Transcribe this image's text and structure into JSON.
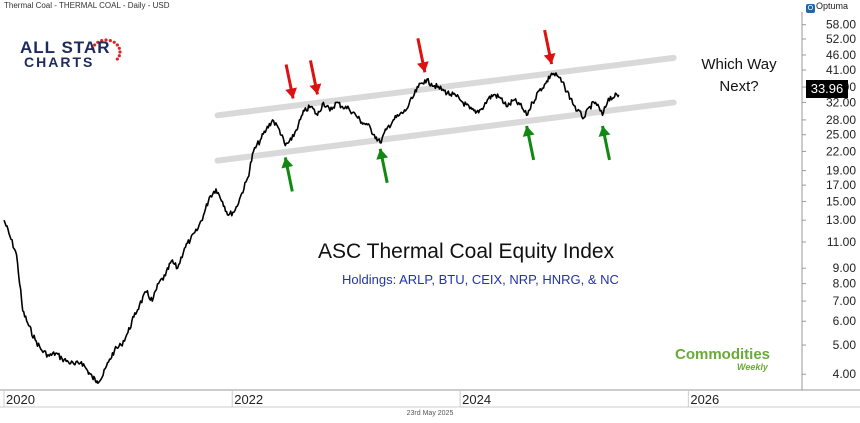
{
  "header": "Thermal Coal - THERMAL COAL - Daily - USD",
  "brand": "Optuma",
  "footer_date": "23rd May 2025",
  "logo": {
    "line1": "ALL STAR",
    "line2": "CHARTS"
  },
  "commodities_logo": {
    "word": "Commodities",
    "sub": "Weekly"
  },
  "colors": {
    "price": "#000000",
    "channel": "#d9d9d9",
    "top_arrow": "#dd1111",
    "bottom_arrow": "#118811",
    "subtitle": "#2233aa",
    "logo": "#1d2b5c"
  },
  "chart_data": {
    "type": "line",
    "title": "ASC Thermal Coal Equity Index",
    "subtitle": "Holdings: ARLP, BTU, CEIX, NRP, HNRG, & NC",
    "annotation": "Which Way\nNext?",
    "last_value": "33.96",
    "y_scale": "log",
    "ylim": [
      3.6,
      62
    ],
    "xlim": [
      "2020-01-01",
      "2026-12-31"
    ],
    "x_ticks": [
      "2020",
      "2022",
      "2024",
      "2026"
    ],
    "y_ticks": [
      "4.00",
      "5.00",
      "6.00",
      "7.00",
      "8.00",
      "9.00",
      "11.00",
      "13.00",
      "15.00",
      "17.00",
      "19.00",
      "22.00",
      "25.00",
      "28.00",
      "32.00",
      "36.00",
      "41.00",
      "46.00",
      "52.00",
      "58.00"
    ],
    "series": [
      {
        "x": [
          "2020-01-01",
          "2020-01-20",
          "2020-02-10",
          "2020-03-01",
          "2020-03-20",
          "2020-04-10",
          "2020-05-01",
          "2020-05-25",
          "2020-06-15",
          "2020-07-05",
          "2020-07-25",
          "2020-08-15",
          "2020-09-05",
          "2020-09-25",
          "2020-10-10",
          "2020-10-25",
          "2020-11-10",
          "2020-12-01",
          "2020-12-20",
          "2021-01-10",
          "2021-02-01",
          "2021-02-20",
          "2021-03-10",
          "2021-04-01",
          "2021-04-20",
          "2021-05-10",
          "2021-06-01",
          "2021-06-20",
          "2021-07-10",
          "2021-08-01",
          "2021-08-20",
          "2021-09-10",
          "2021-10-01",
          "2021-10-20",
          "2021-11-10",
          "2021-12-01",
          "2021-12-20",
          "2022-01-10",
          "2022-02-01",
          "2022-02-20",
          "2022-03-10",
          "2022-04-01",
          "2022-04-20",
          "2022-05-10",
          "2022-06-01",
          "2022-06-20",
          "2022-07-10",
          "2022-08-01",
          "2022-08-20",
          "2022-09-10",
          "2022-10-01",
          "2022-10-20",
          "2022-11-10",
          "2022-12-01",
          "2022-12-20",
          "2023-01-10",
          "2023-02-01",
          "2023-02-20",
          "2023-03-10",
          "2023-04-01",
          "2023-04-20",
          "2023-05-10",
          "2023-06-01",
          "2023-06-20",
          "2023-07-10",
          "2023-08-01",
          "2023-08-20",
          "2023-09-10",
          "2023-10-01",
          "2023-10-20",
          "2023-11-10",
          "2023-12-01",
          "2023-12-20",
          "2024-01-10",
          "2024-02-01",
          "2024-02-20",
          "2024-03-10",
          "2024-04-01",
          "2024-04-20",
          "2024-05-10",
          "2024-06-01",
          "2024-06-20",
          "2024-07-10",
          "2024-08-01",
          "2024-08-20",
          "2024-09-10",
          "2024-10-01",
          "2024-10-20",
          "2024-11-10",
          "2024-12-01",
          "2024-12-20",
          "2025-01-10",
          "2025-02-01",
          "2025-02-20",
          "2025-03-10",
          "2025-04-01",
          "2025-04-20",
          "2025-05-10",
          "2025-05-23"
        ],
        "y": [
          13.0,
          11.5,
          10.0,
          6.5,
          5.8,
          5.2,
          4.8,
          4.6,
          4.7,
          4.5,
          4.4,
          4.3,
          4.4,
          4.1,
          3.9,
          3.8,
          3.9,
          4.4,
          4.8,
          5.0,
          5.5,
          6.2,
          6.8,
          7.5,
          7.0,
          8.0,
          8.5,
          9.5,
          9.0,
          10.5,
          11.2,
          12.0,
          13.5,
          15.5,
          16.5,
          15.0,
          13.5,
          14.0,
          16.0,
          18.0,
          22.0,
          24.0,
          26.0,
          28.0,
          26.0,
          23.0,
          24.0,
          27.0,
          30.0,
          31.0,
          29.0,
          32.0,
          30.0,
          32.0,
          31.0,
          30.5,
          29.0,
          27.5,
          27.0,
          25.0,
          23.5,
          26.0,
          28.0,
          29.0,
          30.0,
          33.0,
          36.0,
          38.0,
          37.0,
          36.0,
          35.0,
          34.0,
          33.5,
          32.0,
          30.5,
          29.5,
          30.5,
          33.0,
          34.0,
          33.0,
          31.0,
          32.5,
          31.5,
          29.0,
          32.0,
          35.0,
          37.0,
          40.0,
          39.0,
          36.0,
          33.0,
          30.0,
          28.5,
          31.0,
          32.0,
          29.0,
          33.0,
          33.5,
          33.96
        ]
      }
    ],
    "channel": {
      "upper": {
        "x": [
          "2021-11-15",
          "2025-11-15"
        ],
        "y": [
          29.0,
          45.0
        ]
      },
      "lower": {
        "x": [
          "2021-11-15",
          "2025-11-15"
        ],
        "y": [
          20.5,
          32.0
        ]
      }
    },
    "arrows_down": [
      {
        "x": "2022-07-15",
        "y": 31.5
      },
      {
        "x": "2022-10-01",
        "y": 32.5
      },
      {
        "x": "2023-09-10",
        "y": 38.5
      },
      {
        "x": "2024-10-20",
        "y": 41.0
      }
    ],
    "arrows_up": [
      {
        "x": "2022-06-20",
        "y": 22.0
      },
      {
        "x": "2023-04-20",
        "y": 23.5
      },
      {
        "x": "2024-08-01",
        "y": 28.0
      },
      {
        "x": "2025-04-01",
        "y": 28.0
      }
    ]
  }
}
